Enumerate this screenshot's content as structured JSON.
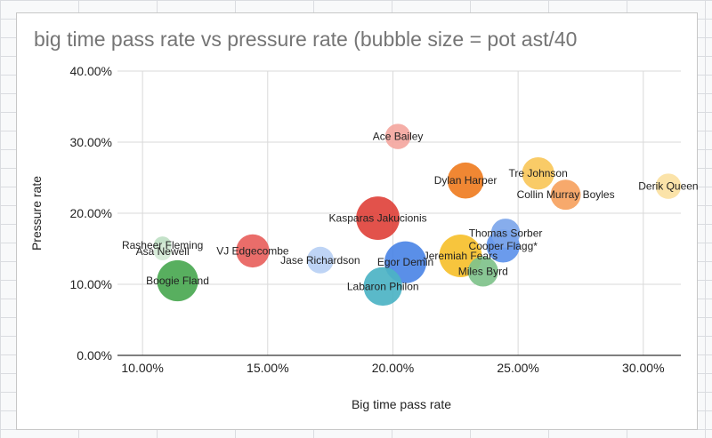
{
  "chart_data": {
    "type": "bubble",
    "title": "big time pass rate vs pressure rate (bubble size = pot ast/40",
    "xlabel": "Big time pass rate",
    "ylabel": "Pressure rate",
    "xlim": [
      0.09,
      0.315
    ],
    "ylim": [
      0,
      0.4
    ],
    "xticks": [
      "10.00%",
      "15.00%",
      "20.00%",
      "25.00%",
      "30.00%"
    ],
    "yticks": [
      "0.00%",
      "10.00%",
      "20.00%",
      "30.00%",
      "40.00%"
    ],
    "grid": true,
    "legend": "none",
    "points": [
      {
        "label": "Ace Bailey",
        "x": 0.202,
        "y": 0.308,
        "size": 0.9,
        "color": "#f4a7a0"
      },
      {
        "label": "Dylan Harper",
        "x": 0.229,
        "y": 0.246,
        "size": 1.9,
        "color": "#ef7d22"
      },
      {
        "label": "Tre Johnson",
        "x": 0.258,
        "y": 0.256,
        "size": 1.5,
        "color": "#f8c75a"
      },
      {
        "label": "Collin Murray Boyles",
        "x": 0.269,
        "y": 0.226,
        "size": 1.3,
        "color": "#f6a260"
      },
      {
        "label": "Derik Queen",
        "x": 0.31,
        "y": 0.238,
        "size": 0.9,
        "color": "#fbe1a2"
      },
      {
        "label": "Kasparas Jakucionis",
        "x": 0.194,
        "y": 0.193,
        "size": 2.8,
        "color": "#e0433c"
      },
      {
        "label": "Rasheer Fleming",
        "x": 0.108,
        "y": 0.155,
        "size": 0.4,
        "color": "#bfe0c4"
      },
      {
        "label": "Asa Newell",
        "x": 0.108,
        "y": 0.146,
        "size": 0.4,
        "color": "#d6ebd8"
      },
      {
        "label": "VJ Edgecombe",
        "x": 0.144,
        "y": 0.147,
        "size": 1.6,
        "color": "#e8615d"
      },
      {
        "label": "Jase Richardson",
        "x": 0.171,
        "y": 0.134,
        "size": 1.0,
        "color": "#b9d0f4"
      },
      {
        "label": "Egor Demin",
        "x": 0.205,
        "y": 0.131,
        "size": 2.6,
        "color": "#4c86e6"
      },
      {
        "label": "Thomas Sorber",
        "x": 0.245,
        "y": 0.172,
        "size": 1.2,
        "color": "#7da6ea"
      },
      {
        "label": "Cooper Flagg*",
        "x": 0.244,
        "y": 0.154,
        "size": 1.6,
        "color": "#5e93ea"
      },
      {
        "label": "Jeremiah Fears",
        "x": 0.227,
        "y": 0.14,
        "size": 2.7,
        "color": "#f6c02c"
      },
      {
        "label": "Miles Byrd",
        "x": 0.236,
        "y": 0.118,
        "size": 1.3,
        "color": "#7fc28b"
      },
      {
        "label": "Boogie Fland",
        "x": 0.114,
        "y": 0.105,
        "size": 2.5,
        "color": "#4aa851"
      },
      {
        "label": "Labaron Philon",
        "x": 0.196,
        "y": 0.097,
        "size": 2.2,
        "color": "#4cb3c4"
      }
    ]
  }
}
